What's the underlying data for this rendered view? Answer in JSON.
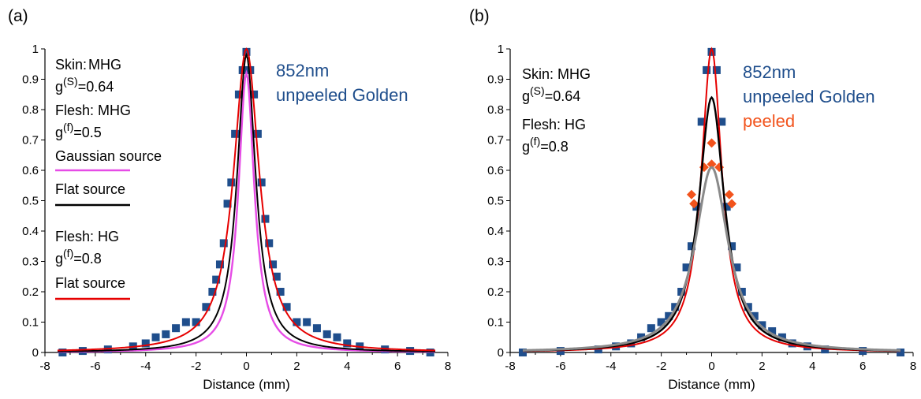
{
  "chart_data": [
    {
      "type": "scatter",
      "panel_label": "(a)",
      "xlabel": "Distance (mm)",
      "ylabel": "",
      "xlim": [
        -8,
        8
      ],
      "ylim": [
        0,
        1
      ],
      "xticks": [
        "-8",
        "-6",
        "-4",
        "-2",
        "0",
        "2",
        "4",
        "6",
        "8"
      ],
      "yticks": [
        "0",
        "0.1",
        "0.2",
        "0.3",
        "0.4",
        "0.5",
        "0.6",
        "0.7",
        "0.8",
        "0.9",
        "1"
      ],
      "annotations": {
        "title1": "852nm",
        "title2": "unpeeled Golden",
        "skin_label": "Skin:",
        "skin_model": "MHG",
        "skin_g_prefix": "g",
        "skin_g_sup": "(S)",
        "skin_g_value": "=0.64",
        "flesh1_label": "Flesh: MHG",
        "flesh1_g_prefix": "g",
        "flesh1_g_sup": "(f)",
        "flesh1_g_value": "=0.5",
        "legend1": "Gaussian source",
        "legend2": "Flat source",
        "flesh2_label": "Flesh: HG",
        "flesh2_g_prefix": "g",
        "flesh2_g_sup": "(f)",
        "flesh2_g_value": "=0.8",
        "legend3": "Flat source"
      },
      "colors": {
        "markers": "#1f4e8c",
        "title": "#1f4e8c",
        "magenta": "#e64ce6",
        "black": "#000000",
        "red": "#e60000"
      },
      "series": [
        {
          "marker": "square",
          "color": "#1f4e8c",
          "x": [
            -7.3,
            -6.5,
            -5.5,
            -4.5,
            -4.0,
            -3.6,
            -3.2,
            -2.8,
            -2.4,
            -2.0,
            -1.6,
            -1.35,
            -1.2,
            -1.05,
            -0.9,
            -0.75,
            -0.6,
            -0.45,
            -0.3,
            -0.15,
            0,
            0.15,
            0.3,
            0.45,
            0.6,
            0.75,
            0.9,
            1.05,
            1.2,
            1.35,
            1.6,
            2.0,
            2.4,
            2.8,
            3.2,
            3.6,
            4.0,
            4.5,
            5.5,
            6.5,
            7.3
          ],
          "y": [
            0.0,
            0.005,
            0.01,
            0.02,
            0.03,
            0.05,
            0.06,
            0.08,
            0.1,
            0.1,
            0.15,
            0.2,
            0.24,
            0.29,
            0.36,
            0.49,
            0.56,
            0.72,
            0.85,
            0.93,
            0.99,
            0.93,
            0.85,
            0.72,
            0.56,
            0.44,
            0.36,
            0.29,
            0.25,
            0.2,
            0.15,
            0.1,
            0.1,
            0.08,
            0.06,
            0.05,
            0.03,
            0.02,
            0.01,
            0.005,
            0.0
          ]
        },
        {
          "line": true,
          "color": "#e64ce6",
          "width": 2.4,
          "peak": 0.92,
          "w": 0.38
        },
        {
          "line": true,
          "color": "#000000",
          "width": 2.0,
          "peak": 0.98,
          "w": 0.45
        },
        {
          "line": true,
          "color": "#e60000",
          "width": 2.0,
          "peak": 1.0,
          "w": 0.62
        }
      ]
    },
    {
      "type": "scatter",
      "panel_label": "(b)",
      "xlabel": "Distance (mm)",
      "ylabel": "",
      "xlim": [
        -8,
        8
      ],
      "ylim": [
        0,
        1
      ],
      "xticks": [
        "-8",
        "-6",
        "-4",
        "-2",
        "0",
        "2",
        "4",
        "6",
        "8"
      ],
      "yticks": [
        "0",
        "0.1",
        "0.2",
        "0.3",
        "0.4",
        "0.5",
        "0.6",
        "0.7",
        "0.8",
        "0.9",
        "1"
      ],
      "annotations": {
        "title1": "852nm",
        "title2": "unpeeled Golden",
        "title3": "peeled",
        "skin_label": "Skin:",
        "skin_model": "MHG",
        "skin_g_prefix": "g",
        "skin_g_sup": "(S)",
        "skin_g_value": "=0.64",
        "flesh_label": "Flesh: HG",
        "flesh_g_prefix": "g",
        "flesh_g_sup": "(f)",
        "flesh_g_value": "=0.8"
      },
      "colors": {
        "markers": "#1f4e8c",
        "title": "#1f4e8c",
        "peeled": "#f2531c",
        "black": "#000000",
        "red": "#e60000",
        "gray": "#8a8a8a"
      },
      "series": [
        {
          "marker": "square",
          "color": "#1f4e8c",
          "x": [
            -7.5,
            -6.0,
            -4.5,
            -3.8,
            -3.2,
            -2.8,
            -2.4,
            -2.0,
            -1.7,
            -1.45,
            -1.2,
            -1.0,
            -0.8,
            -0.6,
            -0.4,
            -0.2,
            0,
            0.2,
            0.4,
            0.6,
            0.8,
            1.0,
            1.2,
            1.45,
            1.7,
            2.0,
            2.4,
            2.8,
            3.2,
            3.8,
            4.5,
            6.0,
            7.5
          ],
          "y": [
            0.0,
            0.005,
            0.01,
            0.02,
            0.03,
            0.05,
            0.08,
            0.1,
            0.12,
            0.15,
            0.2,
            0.28,
            0.35,
            0.48,
            0.76,
            0.93,
            0.99,
            0.93,
            0.76,
            0.48,
            0.35,
            0.28,
            0.2,
            0.15,
            0.12,
            0.09,
            0.07,
            0.05,
            0.03,
            0.02,
            0.01,
            0.005,
            0.0
          ]
        },
        {
          "marker": "diamond",
          "color": "#f2531c",
          "x": [
            -0.8,
            -0.7,
            -0.3,
            0,
            0,
            0.3,
            0.7,
            0.8
          ],
          "y": [
            0.52,
            0.49,
            0.61,
            0.69,
            0.62,
            0.61,
            0.52,
            0.49
          ]
        },
        {
          "line": true,
          "color": "#e60000",
          "width": 2.0,
          "peak": 1.0,
          "w": 0.5
        },
        {
          "line": true,
          "color": "#000000",
          "width": 2.4,
          "peak": 0.84,
          "w": 0.62
        },
        {
          "line": true,
          "color": "#8a8a8a",
          "width": 3.0,
          "peak": 0.61,
          "w": 0.8
        }
      ]
    }
  ]
}
